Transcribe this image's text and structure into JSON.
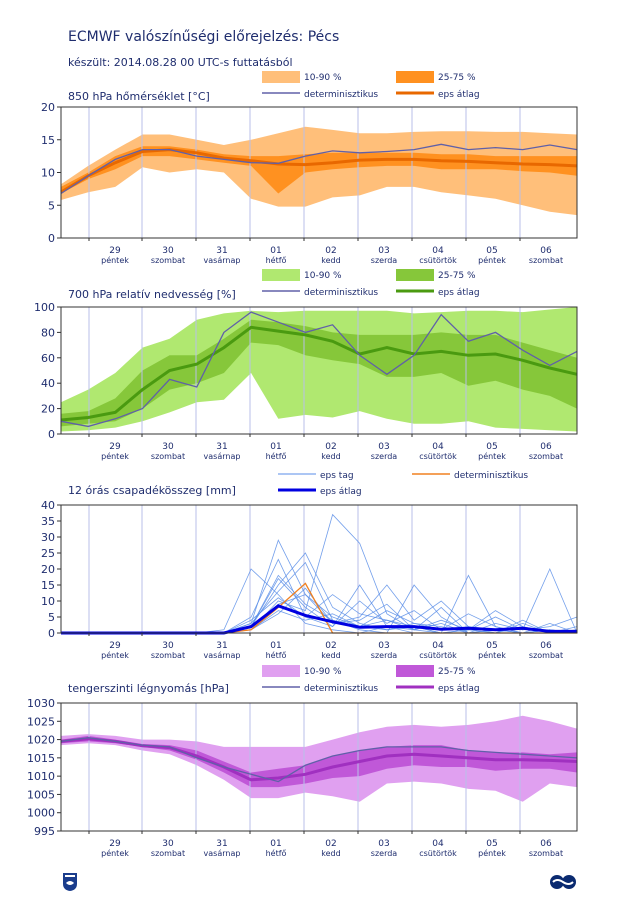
{
  "page": {
    "title": "ECMWF valószínűségi előrejelzés: Pécs",
    "subtitle": "készült: 2014.08.28 00 UTC-s futtatásból"
  },
  "colors": {
    "text": "#1f2d6e",
    "grid": "#b8bfe8",
    "temp_outer": "#ffbf7a",
    "temp_inner": "#ff9120",
    "temp_mean": "#e86800",
    "hum_outer": "#b0e870",
    "hum_inner": "#86c73a",
    "hum_mean": "#4a9a10",
    "precip_member": "#5a8ee8",
    "precip_mean": "#0000e0",
    "precip_det": "#f08020",
    "pres_outer": "#e0a0f0",
    "pres_inner": "#c058d8",
    "pres_mean": "#a030c0",
    "det": "#6060a8"
  },
  "x_axis": {
    "days": [
      "29",
      "30",
      "31",
      "01",
      "02",
      "03",
      "04",
      "05",
      "06"
    ],
    "weekdays": [
      "péntek",
      "szombat",
      "vasárnap",
      "hétfő",
      "kedd",
      "szerda",
      "csütörtök",
      "péntek",
      "szombat"
    ]
  },
  "icons": {
    "left_logo": "omsz-logo-icon",
    "right_logo": "ecmwf-logo-icon"
  },
  "chart_data": [
    {
      "type": "area",
      "title": "850 hPa hőmérséklet [°C]",
      "legend": {
        "outer": "10-90 %",
        "inner": "25-75 %",
        "det": "determinisztikus",
        "mean": "eps átlag"
      },
      "ylim": [
        0,
        20
      ],
      "yticks": [
        0,
        5,
        10,
        15,
        20
      ],
      "x_steps": [
        0,
        1,
        2,
        3,
        4,
        5,
        6,
        7,
        8,
        9,
        10,
        11,
        12,
        13,
        14,
        15,
        16,
        17,
        18,
        19
      ],
      "p10": [
        5.8,
        7,
        7.8,
        10.8,
        10,
        10.5,
        10,
        6,
        4.8,
        4.8,
        6.2,
        6.5,
        7.8,
        7.8,
        7,
        6.5,
        6,
        5,
        4,
        3.5
      ],
      "p25": [
        6.8,
        9,
        10.5,
        12.5,
        12.5,
        12,
        11.5,
        11,
        6.8,
        10,
        10.5,
        10.8,
        11,
        11,
        10.5,
        10.5,
        10.5,
        10.2,
        10,
        9.5
      ],
      "p75": [
        7.8,
        10,
        12.5,
        14,
        14,
        13.5,
        12.8,
        12.5,
        12.5,
        12.8,
        13,
        13,
        13,
        13,
        12.8,
        12.8,
        12.5,
        12.5,
        12.5,
        12.5
      ],
      "p90": [
        8.2,
        11,
        13.5,
        15.8,
        15.8,
        15,
        14.2,
        15,
        16,
        17,
        16.5,
        16,
        16,
        16.2,
        16.3,
        16.3,
        16.2,
        16.2,
        16,
        15.8
      ],
      "mean": [
        7,
        9.5,
        11.5,
        13.2,
        13.5,
        13,
        12.2,
        11.8,
        11.3,
        11.2,
        11.5,
        11.9,
        12,
        12,
        11.8,
        11.7,
        11.5,
        11.3,
        11.2,
        11
      ],
      "det": [
        6.8,
        9.5,
        12,
        13.5,
        13.5,
        12.5,
        12,
        11.5,
        11.4,
        12.5,
        13.3,
        13,
        13.2,
        13.5,
        14.3,
        13.5,
        13.8,
        13.5,
        14.2,
        13.5
      ]
    },
    {
      "type": "area",
      "title": "700 hPa relatív nedvesség [%]",
      "legend": {
        "outer": "10-90 %",
        "inner": "25-75 %",
        "det": "determinisztikus",
        "mean": "eps átlag"
      },
      "ylim": [
        0,
        100
      ],
      "yticks": [
        0,
        20,
        40,
        60,
        80,
        100
      ],
      "x_steps": [
        0,
        1,
        2,
        3,
        4,
        5,
        6,
        7,
        8,
        9,
        10,
        11,
        12,
        13,
        14,
        15,
        16,
        17,
        18,
        19
      ],
      "p10": [
        2,
        3,
        5,
        10,
        17,
        25,
        27,
        48,
        12,
        15,
        13,
        18,
        12,
        8,
        8,
        10,
        5,
        4,
        3,
        2
      ],
      "p25": [
        6,
        8,
        10,
        20,
        35,
        40,
        48,
        72,
        70,
        62,
        58,
        55,
        45,
        45,
        48,
        38,
        42,
        35,
        30,
        20
      ],
      "p75": [
        16,
        18,
        28,
        50,
        62,
        62,
        75,
        90,
        88,
        85,
        80,
        78,
        78,
        78,
        80,
        78,
        78,
        72,
        66,
        60
      ],
      "p90": [
        25,
        35,
        48,
        68,
        75,
        90,
        95,
        97,
        96,
        97,
        97,
        97,
        97,
        95,
        96,
        97,
        97,
        96,
        98,
        100
      ],
      "mean": [
        11,
        13,
        17,
        35,
        50,
        55,
        68,
        84,
        81,
        78,
        73,
        63,
        68,
        63,
        65,
        62,
        63,
        58,
        52,
        47
      ],
      "det": [
        10,
        6,
        12,
        20,
        43,
        37,
        80,
        96,
        88,
        80,
        86,
        62,
        47,
        62,
        94,
        73,
        80,
        66,
        54,
        65
      ]
    },
    {
      "type": "line",
      "title": "12 órás csapadékösszeg [mm]",
      "legend": {
        "member": "eps tag",
        "det": "determinisztikus",
        "mean": "eps átlag"
      },
      "ylim": [
        0,
        40
      ],
      "yticks": [
        0,
        5,
        10,
        15,
        20,
        25,
        30,
        35,
        40
      ],
      "x_steps": [
        0,
        1,
        2,
        3,
        4,
        5,
        6,
        7,
        8,
        9,
        10,
        11,
        12,
        13,
        14,
        15,
        16,
        17,
        18,
        19
      ],
      "mean": [
        0,
        0,
        0,
        0,
        0,
        0,
        0,
        2,
        8.5,
        5.5,
        3.5,
        1.8,
        2,
        2,
        1.2,
        1.5,
        1,
        1.5,
        0.5,
        0.5
      ],
      "det": [
        0,
        0,
        0,
        0,
        0,
        0,
        0,
        1,
        8,
        15.5,
        0,
        0,
        0,
        0,
        0,
        0,
        0,
        0,
        0,
        0
      ],
      "members": [
        [
          0,
          0,
          0,
          0,
          0,
          0,
          0,
          3,
          29,
          12,
          5,
          2,
          4,
          1,
          0,
          0,
          1,
          0,
          0,
          0
        ],
        [
          0,
          0,
          0,
          0,
          0,
          0,
          0,
          2,
          15,
          25,
          8,
          3,
          1,
          2,
          0,
          1,
          0,
          0,
          1,
          0
        ],
        [
          0,
          0,
          0,
          0,
          0,
          0,
          0,
          1,
          10,
          7,
          37,
          28,
          6,
          1,
          3,
          0,
          0,
          2,
          0,
          1
        ],
        [
          0,
          0,
          0,
          0,
          0,
          0,
          0,
          5,
          23,
          5,
          2,
          10,
          3,
          7,
          1,
          6,
          2,
          0,
          1,
          0
        ],
        [
          0,
          0,
          0,
          0,
          0,
          0,
          0,
          1,
          6,
          14,
          3,
          5,
          15,
          4,
          10,
          2,
          0,
          3,
          0,
          0
        ],
        [
          0,
          0,
          0,
          0,
          0,
          0,
          1,
          20,
          12,
          3,
          1,
          0,
          2,
          0,
          0,
          1,
          5,
          1,
          20,
          0
        ],
        [
          0,
          0,
          0,
          0,
          0,
          0,
          0,
          2,
          18,
          9,
          4,
          2,
          7,
          3,
          2,
          0,
          3,
          1,
          2,
          5
        ],
        [
          0,
          0,
          0,
          0,
          0,
          0,
          0,
          3,
          13,
          22,
          4,
          1,
          0,
          15,
          5,
          0,
          1,
          0,
          0,
          0
        ],
        [
          0,
          0,
          0,
          0,
          0,
          0,
          0,
          4,
          11,
          5,
          12,
          6,
          4,
          2,
          0,
          18,
          2,
          0,
          1,
          0
        ],
        [
          0,
          0,
          0,
          0,
          0,
          0,
          0,
          2,
          17,
          8,
          2,
          15,
          2,
          1,
          8,
          0,
          0,
          4,
          0,
          2
        ],
        [
          0,
          0,
          0,
          0,
          0,
          0,
          0,
          1,
          7,
          4,
          6,
          2,
          1,
          3,
          1,
          2,
          1,
          0,
          3,
          0
        ],
        [
          0,
          0,
          0,
          0,
          0,
          0,
          0,
          2,
          9,
          12,
          3,
          4,
          9,
          1,
          4,
          1,
          7,
          2,
          0,
          0
        ]
      ]
    },
    {
      "type": "area",
      "title": "tengerszinti légnyomás [hPa]",
      "legend": {
        "outer": "10-90 %",
        "inner": "25-75 %",
        "det": "determinisztikus",
        "mean": "eps átlag"
      },
      "ylim": [
        995,
        1030
      ],
      "yticks": [
        995,
        1000,
        1005,
        1010,
        1015,
        1020,
        1025,
        1030
      ],
      "x_steps": [
        0,
        1,
        2,
        3,
        4,
        5,
        6,
        7,
        8,
        9,
        10,
        11,
        12,
        13,
        14,
        15,
        16,
        17,
        18,
        19
      ],
      "p10": [
        1018.5,
        1019,
        1018.5,
        1017,
        1016,
        1013,
        1009,
        1004,
        1004,
        1005.5,
        1004.5,
        1003,
        1008,
        1008.5,
        1008,
        1006.5,
        1006,
        1003,
        1008,
        1007
      ],
      "p25": [
        1019,
        1019.5,
        1019,
        1018,
        1017,
        1014.5,
        1011,
        1007,
        1007,
        1008,
        1009.5,
        1010,
        1012,
        1013,
        1012.5,
        1012.5,
        1011.5,
        1012,
        1012,
        1011
      ],
      "p75": [
        1020,
        1021,
        1020,
        1018.8,
        1018.5,
        1017,
        1014,
        1011,
        1012,
        1013,
        1015.5,
        1017,
        1018,
        1018.5,
        1018.5,
        1017,
        1016.5,
        1016.5,
        1016,
        1016.5
      ],
      "p90": [
        1021,
        1021.5,
        1021,
        1020,
        1020,
        1019.5,
        1018,
        1018,
        1018,
        1018,
        1020,
        1022,
        1023.5,
        1024,
        1023.5,
        1024,
        1025,
        1026.5,
        1025,
        1023
      ],
      "mean": [
        1019.5,
        1020.2,
        1019.5,
        1018.3,
        1017.8,
        1015.5,
        1012.5,
        1009,
        1009.5,
        1010.5,
        1012.5,
        1014,
        1015.5,
        1016,
        1015.5,
        1015,
        1014.5,
        1014.5,
        1014.3,
        1014
      ],
      "det": [
        1019.5,
        1020.5,
        1019.5,
        1018.5,
        1018,
        1015,
        1012.5,
        1010.5,
        1008.5,
        1013,
        1015.5,
        1017,
        1018,
        1018,
        1018,
        1017,
        1016.5,
        1016,
        1015.5,
        1015
      ]
    }
  ]
}
